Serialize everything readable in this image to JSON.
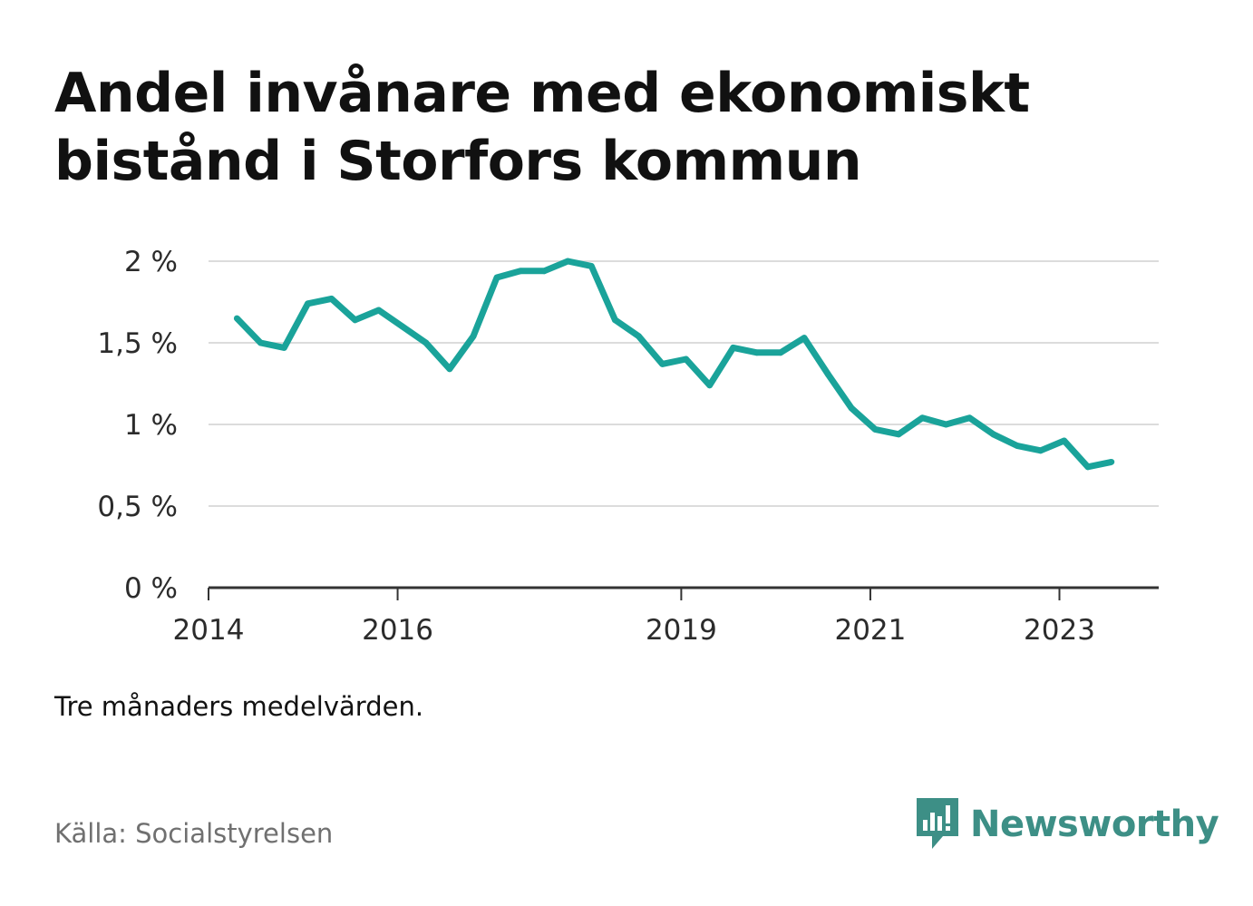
{
  "title": "Andel invånare med ekonomiskt bistånd i Storfors kommun",
  "note": "Tre månaders medelvärden.",
  "source": "Källa: Socialstyrelsen",
  "brand": {
    "name": "Newsworthy",
    "icon": "newsworthy-logo-icon",
    "color": "#3d8f86"
  },
  "chart_data": {
    "type": "line",
    "title": "Andel invånare med ekonomiskt bistånd i Storfors kommun",
    "xlabel": "",
    "ylabel": "",
    "ylim": [
      0,
      2
    ],
    "xlim": [
      2014,
      2024.05
    ],
    "y_ticks": [
      0,
      0.5,
      1,
      1.5,
      2
    ],
    "y_tick_labels": [
      "0 %",
      "0,5 %",
      "1 %",
      "1,5 %",
      "2 %"
    ],
    "x_ticks": [
      2014,
      2016,
      2019,
      2021,
      2023
    ],
    "x_tick_labels": [
      "2014",
      "2016",
      "2019",
      "2021",
      "2023"
    ],
    "grid": true,
    "legend": "none",
    "line_color": "#1aa39a",
    "series": [
      {
        "x": [
          2014.3,
          2014.55,
          2014.8,
          2015.05,
          2015.3,
          2015.55,
          2015.8,
          2016.05,
          2016.3,
          2016.55,
          2016.8,
          2017.05,
          2017.3,
          2017.55,
          2017.8,
          2018.05,
          2018.3,
          2018.55,
          2018.8,
          2019.05,
          2019.3,
          2019.55,
          2019.8,
          2020.05,
          2020.3,
          2020.55,
          2020.8,
          2021.05,
          2021.3,
          2021.55,
          2021.8,
          2022.05,
          2022.3,
          2022.55,
          2022.8,
          2023.05,
          2023.3,
          2023.55
        ],
        "values": [
          1.65,
          1.5,
          1.47,
          1.74,
          1.77,
          1.64,
          1.7,
          1.6,
          1.5,
          1.34,
          1.54,
          1.9,
          1.94,
          1.94,
          2.0,
          1.97,
          1.64,
          1.54,
          1.37,
          1.4,
          1.24,
          1.47,
          1.44,
          1.44,
          1.53,
          1.31,
          1.1,
          0.97,
          0.94,
          1.04,
          1.0,
          1.04,
          0.94,
          0.87,
          0.84,
          0.9,
          0.74,
          0.77
        ]
      }
    ]
  }
}
